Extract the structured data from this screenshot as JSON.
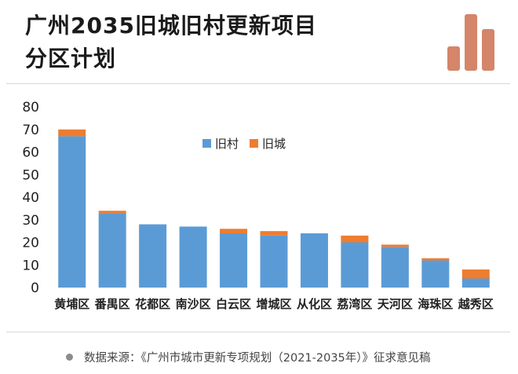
{
  "title": {
    "line1": "广州2035旧城旧村更新项目",
    "line2": "分区计划"
  },
  "source": "数据来源：《广州市城市更新专项规划（2021-2035年）》征求意见稿",
  "colors": {
    "old_village": "#5b9bd5",
    "old_city": "#ed7d31",
    "logo": "#d4856a",
    "axis_text": "#222222"
  },
  "chart_data": {
    "type": "bar",
    "stacked": true,
    "title": "广州2035旧城旧村更新项目分区计划",
    "categories": [
      "黄埔区",
      "番禺区",
      "花都区",
      "南沙区",
      "白云区",
      "增城区",
      "从化区",
      "荔湾区",
      "天河区",
      "海珠区",
      "越秀区"
    ],
    "series": [
      {
        "name": "旧村",
        "values": [
          67,
          33,
          28,
          27,
          24,
          23,
          24,
          20,
          18,
          12,
          4
        ]
      },
      {
        "name": "旧城",
        "values": [
          3,
          1,
          0,
          0,
          2,
          2,
          0,
          3,
          1,
          1,
          4
        ]
      }
    ],
    "yticks": [
      0,
      10,
      20,
      30,
      40,
      50,
      60,
      70,
      80
    ],
    "ylim": [
      0,
      80
    ],
    "xlabel": "",
    "ylabel": "",
    "grid": false,
    "legend_position": "upper-center"
  }
}
